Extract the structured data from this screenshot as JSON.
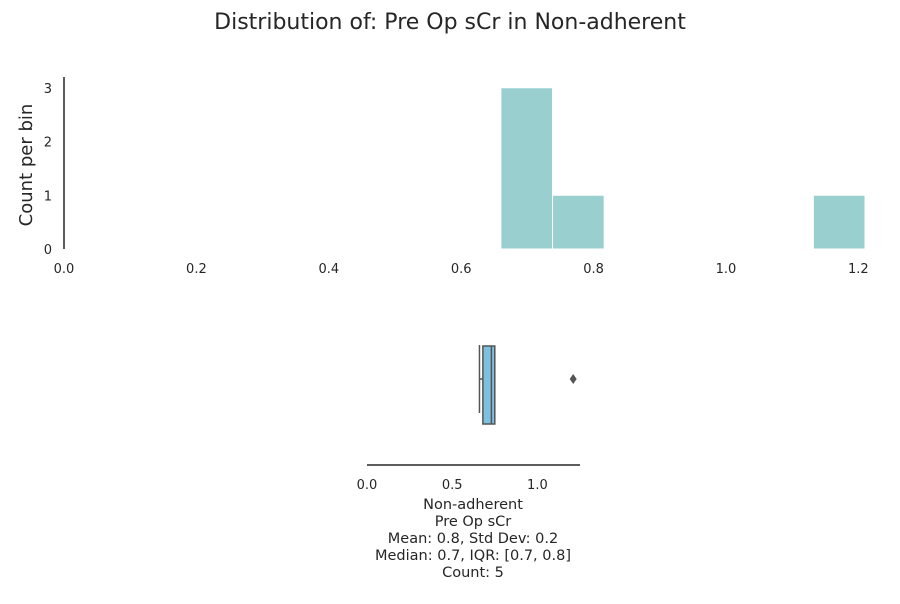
{
  "chart_data": [
    {
      "type": "histogram",
      "title": "Distribution of: Pre Op sCr in Non-adherent",
      "ylabel": "Count per bin",
      "xlim": [
        0.0,
        1.21
      ],
      "ylim": [
        0,
        3.2
      ],
      "xticks": [
        "0.0",
        "0.2",
        "0.4",
        "0.6",
        "0.8",
        "1.0",
        "1.2"
      ],
      "yticks": [
        "0",
        "1",
        "2",
        "3"
      ],
      "bin_width": 0.078,
      "bins": [
        {
          "x0": 0.66,
          "x1": 0.738,
          "count": 3
        },
        {
          "x0": 0.738,
          "x1": 0.816,
          "count": 1
        },
        {
          "x0": 1.132,
          "x1": 1.21,
          "count": 1
        }
      ],
      "color": "#99cfcf"
    },
    {
      "type": "boxplot",
      "xlim": [
        0.0,
        1.25
      ],
      "xticks": [
        "0.0",
        "0.5",
        "1.0"
      ],
      "q1": 0.68,
      "median": 0.73,
      "q3": 0.75,
      "whisker_low": 0.66,
      "whisker_high": 0.75,
      "outliers": [
        1.21
      ],
      "box_color": "#7fbfdf",
      "line_color": "#555555",
      "stats_text": [
        "Non-adherent",
        "Pre Op sCr",
        "Mean: 0.8, Std Dev: 0.2",
        "Median: 0.7, IQR: [0.7, 0.8]",
        "Count: 5"
      ]
    }
  ]
}
